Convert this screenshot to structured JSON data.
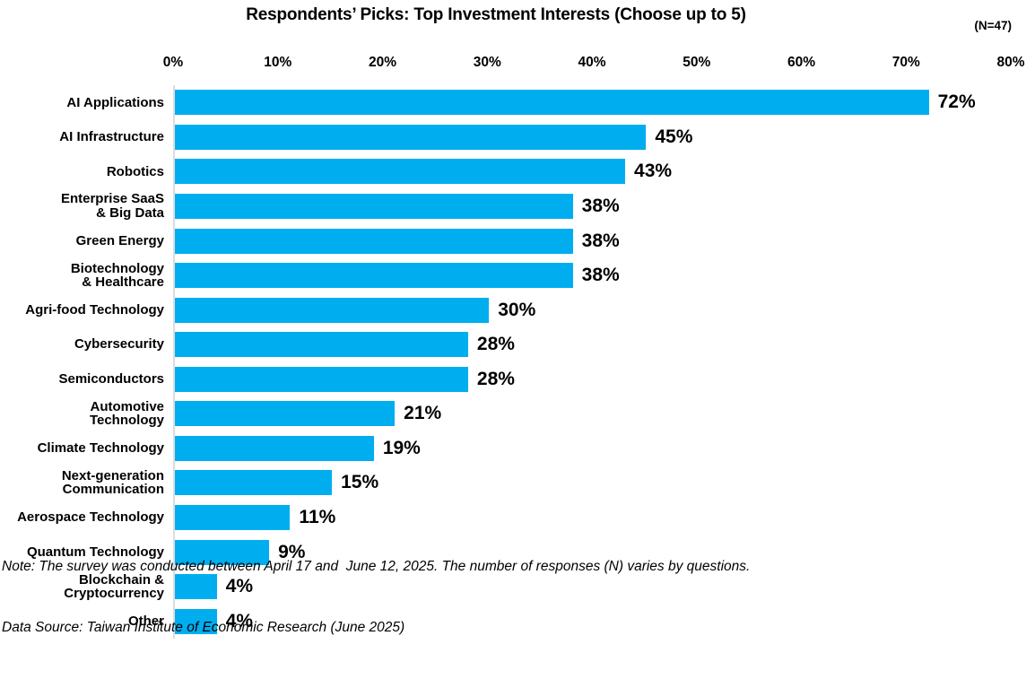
{
  "header": {
    "title": "Respondents’ Picks: Top Investment Interests (Choose up to 5)",
    "sample_size": "(N=47)"
  },
  "chart_data": {
    "type": "bar",
    "orientation": "horizontal",
    "title": "Respondents’ Picks: Top Investment Interests (Choose up to 5)",
    "categories": [
      "AI Applications",
      "AI Infrastructure",
      "Robotics",
      "Enterprise SaaS\n& Big Data",
      "Green Energy",
      "Biotechnology\n& Healthcare",
      "Agri-food Technology",
      "Cybersecurity",
      "Semiconductors",
      "Automotive\nTechnology",
      "Climate Technology",
      "Next-generation\nCommunication",
      "Aerospace Technology",
      "Quantum Technology",
      "Blockchain &\nCryptocurrency",
      "Other"
    ],
    "values": [
      72,
      45,
      43,
      38,
      38,
      38,
      30,
      28,
      28,
      21,
      19,
      15,
      11,
      9,
      4,
      4
    ],
    "value_labels": [
      "72%",
      "45%",
      "43%",
      "38%",
      "38%",
      "38%",
      "30%",
      "28%",
      "28%",
      "21%",
      "19%",
      "15%",
      "11%",
      "9%",
      "4%",
      "4%"
    ],
    "x_ticks": [
      "0%",
      "10%",
      "20%",
      "30%",
      "40%",
      "50%",
      "60%",
      "70%",
      "80%"
    ],
    "xlim": [
      0,
      80
    ],
    "xlabel": "",
    "ylabel": "",
    "grid": false,
    "legend": "none",
    "axis_position": "top",
    "bar_color": "#00AEEF",
    "axis_line_color": "#dcdcdc",
    "label_color": "#000000"
  },
  "footer": {
    "note": "Note: The survey was conducted between April 17 and  June 12, 2025. The number of responses (N) varies by questions.",
    "source": "Data Source: Taiwan Institute of Economic Research (June 2025)"
  }
}
